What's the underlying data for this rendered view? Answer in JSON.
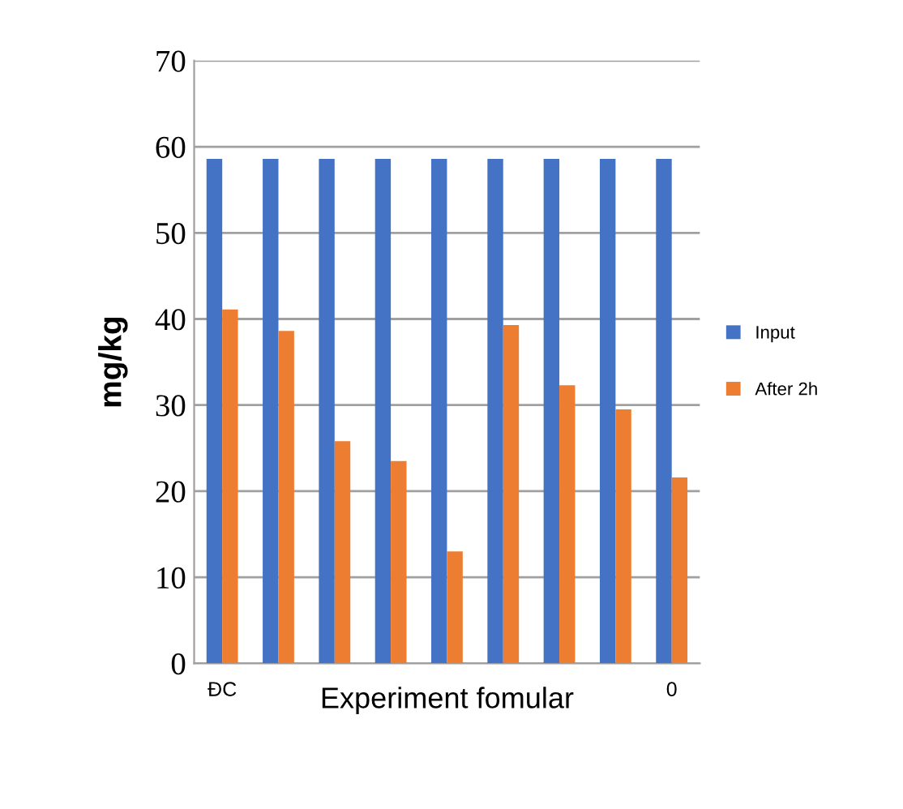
{
  "chart_data": {
    "type": "bar",
    "xlabel": "Experiment fomular",
    "ylabel": "mg/kg",
    "categories": [
      "ĐC",
      null,
      null,
      null,
      null,
      null,
      null,
      null,
      "0"
    ],
    "series": [
      {
        "name": "Input",
        "color": "#4472c4",
        "values": [
          58.6,
          58.6,
          58.6,
          58.6,
          58.6,
          58.6,
          58.6,
          58.6,
          58.6
        ]
      },
      {
        "name": "After 2h",
        "color": "#ed7d31",
        "values": [
          41.1,
          38.6,
          25.8,
          23.5,
          13.0,
          39.3,
          32.3,
          29.5,
          21.6
        ]
      }
    ],
    "ylim": [
      0,
      70
    ],
    "yticks": [
      0,
      10,
      20,
      30,
      40,
      50,
      60,
      70
    ],
    "grid": "y",
    "legend": "right"
  }
}
